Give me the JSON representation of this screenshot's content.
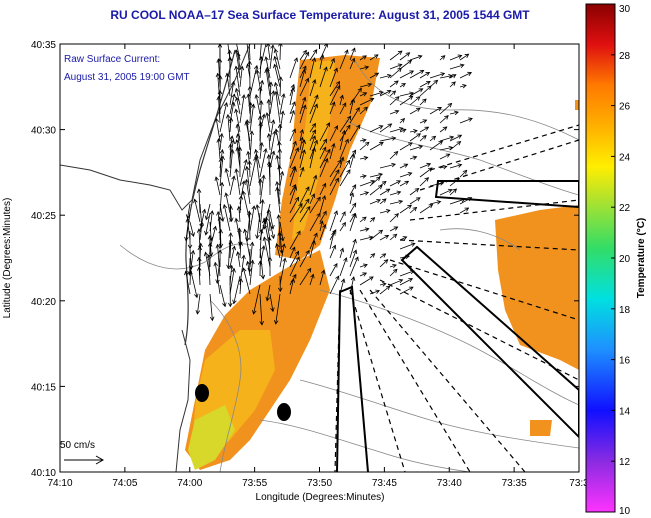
{
  "title": "RU COOL  NOAA–17  Sea Surface Temperature:  August 31, 2005 1544 GMT",
  "overlay": {
    "line1": "Raw Surface Current:",
    "line2": "August 31, 2005 19:00 GMT"
  },
  "scale": {
    "label": "50 cm/s"
  },
  "axes": {
    "xlabel": "Longitude (Degrees:Minutes)",
    "ylabel": "Latitude (Degrees:Minutes)",
    "xticks": [
      "74:10",
      "74:05",
      "74:00",
      "73:55",
      "73:50",
      "73:45",
      "73:40",
      "73:35",
      "73:3"
    ],
    "yticks": [
      "40:35",
      "40:30",
      "40:25",
      "40:20",
      "40:15",
      "40:10"
    ]
  },
  "colorbar": {
    "label": "Temperature (°C)",
    "ticks": [
      "30",
      "28",
      "26",
      "24",
      "22",
      "20",
      "18",
      "16",
      "14",
      "12",
      "10"
    ],
    "min": 10,
    "max": 30
  },
  "colors": {
    "title": "#1a1aa8",
    "warm": "#f2921e",
    "mid": "#f6b21a",
    "cool": "#d8d82a"
  }
}
